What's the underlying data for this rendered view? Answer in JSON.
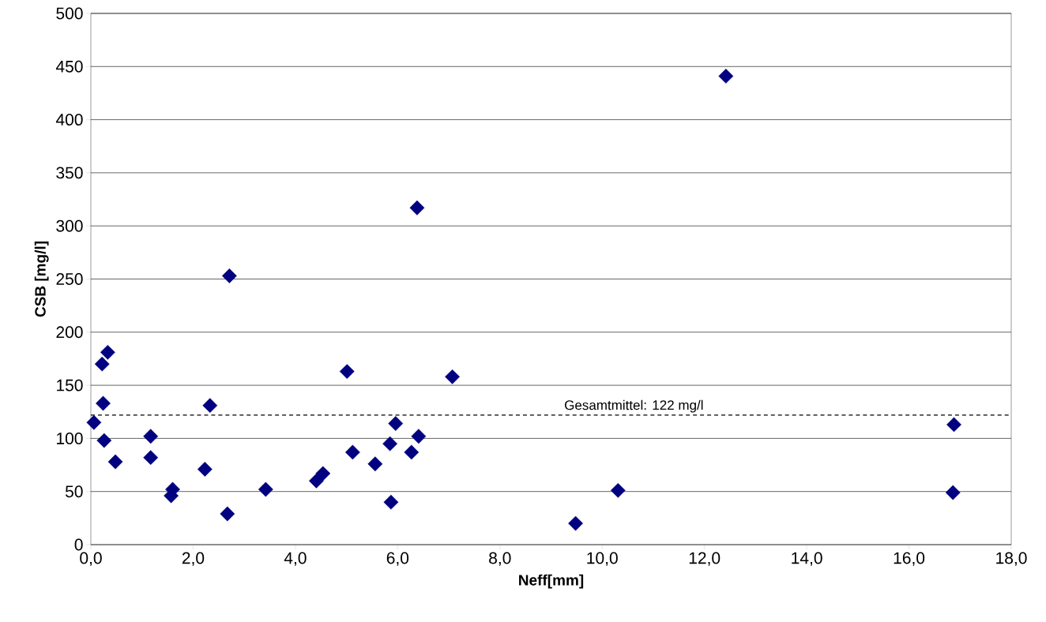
{
  "chart_data": {
    "type": "scatter",
    "xlabel": "Neff[mm]",
    "ylabel": "CSB [mg/l]",
    "x": [
      0.33,
      0.22,
      0.24,
      0.06,
      0.26,
      0.48,
      1.17,
      1.17,
      1.6,
      1.57,
      2.23,
      2.33,
      2.67,
      2.71,
      3.42,
      4.41,
      4.54,
      5.01,
      5.12,
      5.56,
      5.85,
      5.87,
      5.96,
      6.27,
      6.38,
      6.41,
      7.07,
      9.48,
      10.31,
      12.42,
      16.86,
      16.88
    ],
    "series": [
      {
        "color": "#000080",
        "values": [
          181,
          170,
          133,
          115,
          98,
          78,
          102,
          82,
          52,
          46,
          71,
          131,
          29,
          253,
          52,
          60,
          67,
          163,
          87,
          76,
          95,
          40,
          114,
          87,
          317,
          102,
          158,
          20,
          51,
          441,
          49,
          113
        ]
      }
    ],
    "xlim": [
      0,
      18
    ],
    "xticks": [
      {
        "value": 0,
        "label": "0,0"
      },
      {
        "value": 2,
        "label": "2,0"
      },
      {
        "value": 4,
        "label": "4,0"
      },
      {
        "value": 6,
        "label": "6,0"
      },
      {
        "value": 8,
        "label": "8,0"
      },
      {
        "value": 10,
        "label": "10,0"
      },
      {
        "value": 12,
        "label": "12,0"
      },
      {
        "value": 14,
        "label": "14,0"
      },
      {
        "value": 16,
        "label": "16,0"
      },
      {
        "value": 18,
        "label": "18,0"
      }
    ],
    "ylim": [
      0,
      500
    ],
    "yticks": [
      0,
      50,
      100,
      150,
      200,
      250,
      300,
      350,
      400,
      450,
      500
    ],
    "ref_lines": [
      {
        "axis": "y",
        "value": 122,
        "label": "Gesamtmittel: 122 mg/l",
        "color": "#000000",
        "line_style": "dashed"
      }
    ],
    "grid": "y",
    "marker": "diamond"
  }
}
